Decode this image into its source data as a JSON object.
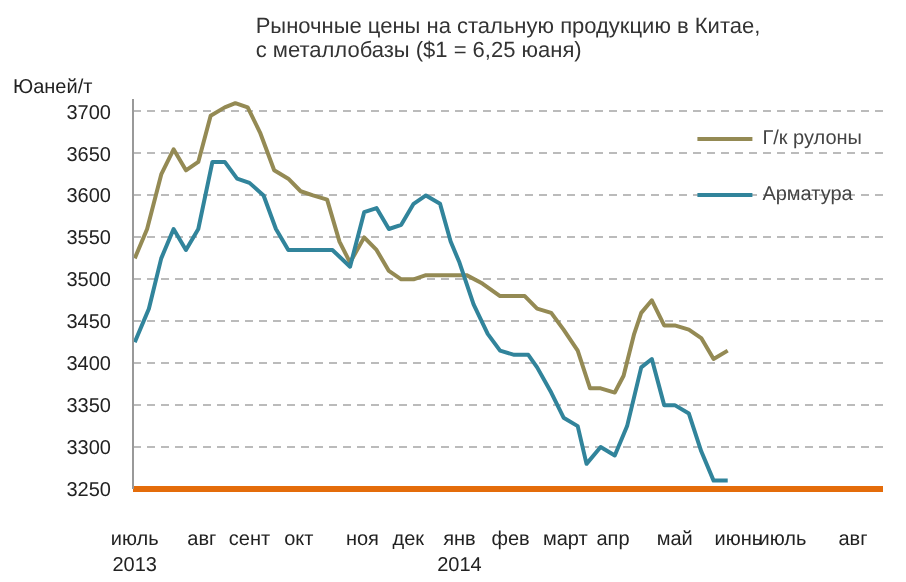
{
  "chart_data": {
    "type": "line",
    "title": "Рыночные цены на стальную продукцию в Китае,\nс металлобазы ($1 = 6,25 юаня)",
    "ylabel": "Юаней/т",
    "series": [
      {
        "name": "Г/к рулоны",
        "color": "#948a54",
        "x": [
          "2013-07-01",
          "2013-07-08",
          "2013-07-16",
          "2013-07-23",
          "2013-07-30",
          "2013-08-06",
          "2013-08-13",
          "2013-08-21",
          "2013-08-27",
          "2013-09-03",
          "2013-09-10",
          "2013-09-18",
          "2013-09-26",
          "2013-10-03",
          "2013-10-10",
          "2013-10-18",
          "2013-10-25",
          "2013-10-31",
          "2013-11-08",
          "2013-11-15",
          "2013-11-22",
          "2013-11-29",
          "2013-12-06",
          "2013-12-13",
          "2013-12-21",
          "2014-01-05",
          "2014-01-14",
          "2014-01-24",
          "2014-02-07",
          "2014-02-14",
          "2014-02-22",
          "2014-03-01",
          "2014-03-09",
          "2014-03-16",
          "2014-03-22",
          "2014-03-30",
          "2014-04-04",
          "2014-04-10",
          "2014-04-14",
          "2014-04-20",
          "2014-04-27",
          "2014-05-03",
          "2014-05-11",
          "2014-05-18",
          "2014-05-25",
          "2014-06-02"
        ],
        "values": [
          3525,
          3560,
          3625,
          3655,
          3630,
          3640,
          3695,
          3705,
          3710,
          3705,
          3675,
          3630,
          3620,
          3605,
          3600,
          3595,
          3545,
          3520,
          3550,
          3535,
          3510,
          3500,
          3500,
          3505,
          3505,
          3505,
          3495,
          3480,
          3480,
          3465,
          3460,
          3440,
          3415,
          3370,
          3370,
          3365,
          3385,
          3435,
          3460,
          3475,
          3445,
          3445,
          3440,
          3430,
          3405,
          3415
        ]
      },
      {
        "name": "Арматура",
        "color": "#31849b",
        "x": [
          "2013-07-01",
          "2013-07-09",
          "2013-07-16",
          "2013-07-23",
          "2013-07-30",
          "2013-08-06",
          "2013-08-14",
          "2013-08-21",
          "2013-08-28",
          "2013-09-04",
          "2013-09-12",
          "2013-09-19",
          "2013-09-26",
          "2013-10-02",
          "2013-10-21",
          "2013-10-31",
          "2013-11-08",
          "2013-11-15",
          "2013-11-22",
          "2013-11-29",
          "2013-12-06",
          "2013-12-13",
          "2013-12-21",
          "2013-12-27",
          "2014-01-01",
          "2014-01-09",
          "2014-01-17",
          "2014-01-24",
          "2014-02-01",
          "2014-02-09",
          "2014-02-14",
          "2014-02-22",
          "2014-03-01",
          "2014-03-09",
          "2014-03-14",
          "2014-03-22",
          "2014-03-30",
          "2014-04-06",
          "2014-04-14",
          "2014-04-20",
          "2014-04-27",
          "2014-05-03",
          "2014-05-11",
          "2014-05-18",
          "2014-05-25",
          "2014-06-02"
        ],
        "values": [
          3425,
          3465,
          3525,
          3560,
          3535,
          3560,
          3640,
          3640,
          3620,
          3615,
          3600,
          3560,
          3535,
          3535,
          3535,
          3515,
          3580,
          3585,
          3560,
          3565,
          3590,
          3600,
          3590,
          3545,
          3520,
          3470,
          3435,
          3415,
          3410,
          3410,
          3395,
          3365,
          3335,
          3325,
          3280,
          3300,
          3290,
          3325,
          3395,
          3405,
          3350,
          3350,
          3340,
          3295,
          3260,
          3260
        ]
      }
    ],
    "xlim": [
      "2013-06-30",
      "2014-08-29"
    ],
    "xticks": [
      {
        "value": "2013-07-01",
        "label": "июль\n2013"
      },
      {
        "value": "2013-08-08",
        "label": "авг"
      },
      {
        "value": "2013-09-04",
        "label": "сент"
      },
      {
        "value": "2013-10-02",
        "label": "окт"
      },
      {
        "value": "2013-11-07",
        "label": "ноя"
      },
      {
        "value": "2013-12-03",
        "label": "дек"
      },
      {
        "value": "2014-01-01",
        "label": "янв\n2014"
      },
      {
        "value": "2014-01-30",
        "label": "фев"
      },
      {
        "value": "2014-03-02",
        "label": "март"
      },
      {
        "value": "2014-03-29",
        "label": "апр"
      },
      {
        "value": "2014-05-03",
        "label": "май"
      },
      {
        "value": "2014-06-08",
        "label": "июнь"
      },
      {
        "value": "2014-07-03",
        "label": "июль"
      },
      {
        "value": "2014-08-12",
        "label": "авг"
      }
    ],
    "ylim": [
      3250,
      3715
    ],
    "yticks": [
      3250,
      3300,
      3350,
      3400,
      3450,
      3500,
      3550,
      3600,
      3650,
      3700
    ],
    "grid": "y",
    "legend": "top right",
    "marker": "none",
    "line_style": "solid"
  }
}
